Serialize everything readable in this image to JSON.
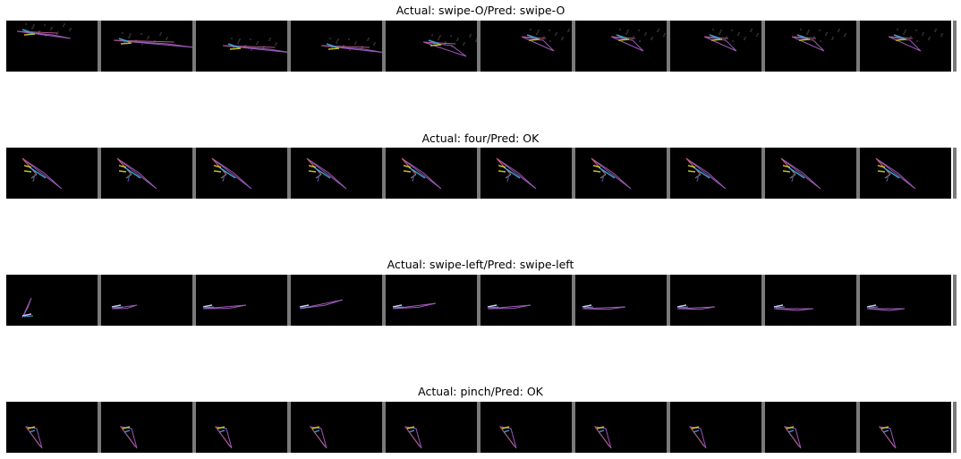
{
  "rows": [
    {
      "title": "Actual: swipe-O/Pred: swipe-O"
    },
    {
      "title": "Actual: four/Pred: OK"
    },
    {
      "title": "Actual: swipe-left/Pred: swipe-left"
    },
    {
      "title": "Actual: pinch/Pred: OK"
    }
  ]
}
